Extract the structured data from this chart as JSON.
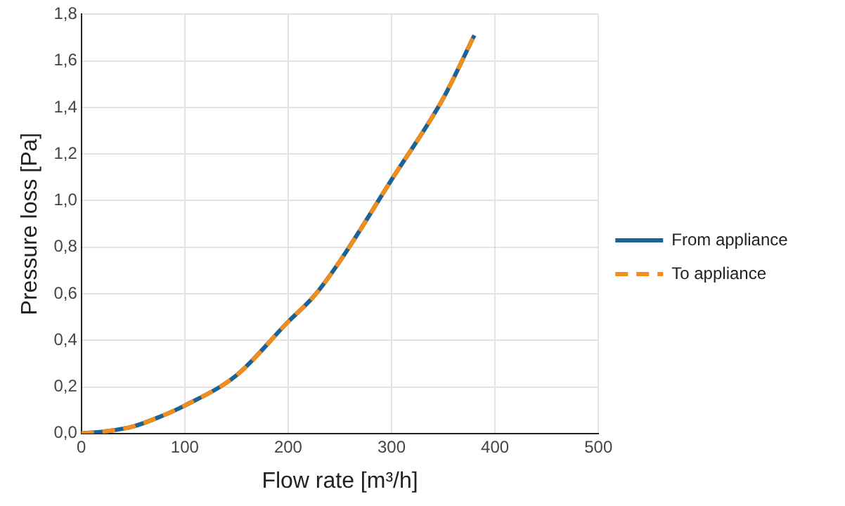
{
  "chart_data": {
    "type": "line",
    "xlabel": "Flow rate [m³/h]",
    "ylabel": "Pressure loss [Pa]",
    "x": [
      0,
      25,
      50,
      75,
      100,
      150,
      200,
      225,
      250,
      300,
      350,
      380
    ],
    "series": [
      {
        "name": "From appliance",
        "color": "#1b6397",
        "line_style": "solid",
        "values": [
          0,
          0.01,
          0.03,
          0.07,
          0.12,
          0.25,
          0.48,
          0.59,
          0.74,
          1.09,
          1.44,
          1.71
        ]
      },
      {
        "name": "To appliance",
        "color": "#f28c1a",
        "line_style": "dashed",
        "values": [
          0,
          0.01,
          0.03,
          0.07,
          0.12,
          0.25,
          0.48,
          0.59,
          0.74,
          1.09,
          1.44,
          1.71
        ]
      }
    ],
    "xlim": [
      0,
      500
    ],
    "xticks": [
      0,
      100,
      200,
      300,
      400,
      500
    ],
    "ylim": [
      0,
      1.8
    ],
    "yticks": [
      {
        "value": 0,
        "label": "0,0"
      },
      {
        "value": 0.2,
        "label": "0,2"
      },
      {
        "value": 0.4,
        "label": "0,4"
      },
      {
        "value": 0.6,
        "label": "0,6"
      },
      {
        "value": 0.8,
        "label": "0,8"
      },
      {
        "value": 1,
        "label": "1,0"
      },
      {
        "value": 1.2,
        "label": "1,2"
      },
      {
        "value": 1.4,
        "label": "1,4"
      },
      {
        "value": 1.6,
        "label": "1,6"
      },
      {
        "value": 1.8,
        "label": "1,8"
      }
    ],
    "grid": true,
    "legend": "right",
    "marker": "none"
  }
}
